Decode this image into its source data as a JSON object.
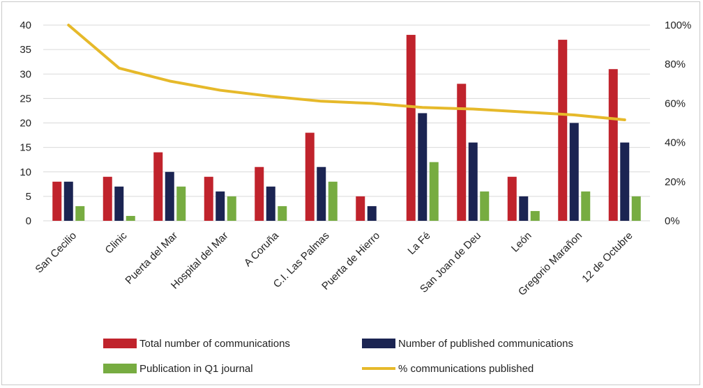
{
  "chart_data": {
    "type": "bar",
    "categories": [
      "San Cecilio",
      "Clinic",
      "Puerta del Mar",
      "Hospital del Mar",
      "A Coruña",
      "C.I. Las Palmas",
      "Puerta de Hierro",
      "La Fé",
      "San Joan de Deu",
      "León",
      "Gregorio Marañon",
      "12 de Octubre"
    ],
    "series": [
      {
        "name": "Total number of communications",
        "type": "bar",
        "axis": "left",
        "color": "#c0232c",
        "values": [
          8,
          9,
          14,
          9,
          11,
          18,
          5,
          38,
          28,
          9,
          37,
          31
        ]
      },
      {
        "name": "Number of published communications",
        "type": "bar",
        "axis": "left",
        "color": "#1b2452",
        "values": [
          8,
          7,
          10,
          6,
          7,
          11,
          3,
          22,
          16,
          5,
          20,
          16
        ]
      },
      {
        "name": "Publication in Q1 journal",
        "type": "bar",
        "axis": "left",
        "color": "#77ac41",
        "values": [
          3,
          1,
          7,
          5,
          3,
          8,
          0,
          12,
          6,
          2,
          6,
          5
        ]
      },
      {
        "name": "% communications published",
        "type": "line",
        "axis": "right",
        "color": "#e6b92a",
        "values": [
          100,
          78,
          71.4,
          66.7,
          63.6,
          61.1,
          60,
          57.9,
          57.1,
          55.6,
          54.1,
          51.6
        ]
      }
    ],
    "y_left": {
      "min": 0,
      "max": 40,
      "step": 5,
      "ticks": [
        "0",
        "5",
        "10",
        "15",
        "20",
        "25",
        "30",
        "35",
        "40"
      ]
    },
    "y_right": {
      "min": 0,
      "max": 100,
      "step": 20,
      "ticks": [
        "0%",
        "20%",
        "40%",
        "60%",
        "80%",
        "100%"
      ]
    },
    "grid": true,
    "legend_position": "bottom",
    "title": "",
    "xlabel": "",
    "ylabel": ""
  }
}
